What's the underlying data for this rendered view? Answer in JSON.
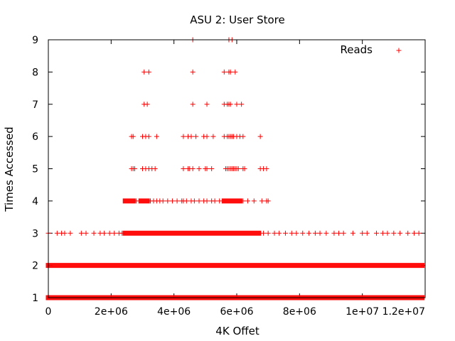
{
  "chart_data": {
    "type": "scatter",
    "title": "ASU 2: User Store",
    "xlabel": "4K Offet",
    "ylabel": "Times Accessed",
    "xlim": [
      0,
      12000000
    ],
    "ylim": [
      1,
      9
    ],
    "x_ticks": [
      {
        "value": 0,
        "label": "0"
      },
      {
        "value": 2000000,
        "label": "2e+06"
      },
      {
        "value": 4000000,
        "label": "4e+06"
      },
      {
        "value": 6000000,
        "label": "6e+06"
      },
      {
        "value": 8000000,
        "label": "8e+06"
      },
      {
        "value": 10000000,
        "label": "1e+07"
      },
      {
        "value": 12000000,
        "label": "1.2e+07"
      }
    ],
    "y_ticks": [
      {
        "value": 1,
        "label": "1"
      },
      {
        "value": 2,
        "label": "2"
      },
      {
        "value": 3,
        "label": "3"
      },
      {
        "value": 4,
        "label": "4"
      },
      {
        "value": 5,
        "label": "5"
      },
      {
        "value": 6,
        "label": "6"
      },
      {
        "value": 7,
        "label": "7"
      },
      {
        "value": 8,
        "label": "8"
      },
      {
        "value": 9,
        "label": "9"
      }
    ],
    "grid": false,
    "legend_position": "top-right",
    "series": [
      {
        "name": "Reads",
        "color": "#ff0000",
        "marker": "plus",
        "points": [
          {
            "y": 1,
            "x_segments": [
              [
                0,
                11900000
              ]
            ]
          },
          {
            "y": 2,
            "x_segments": [
              [
                0,
                11900000
              ]
            ]
          },
          {
            "y": 3,
            "x_segments": [
              [
                2450000,
                6700000
              ]
            ],
            "x": [
              0,
              280000,
              420000,
              520000,
              700000,
              1050000,
              1200000,
              1450000,
              1650000,
              1780000,
              1950000,
              2100000,
              2250000,
              2350000,
              6850000,
              7000000,
              7200000,
              7350000,
              7550000,
              7750000,
              7900000,
              8100000,
              8300000,
              8500000,
              8650000,
              8850000,
              9100000,
              9250000,
              9400000,
              9700000,
              10000000,
              10150000,
              10450000,
              10650000,
              10800000,
              11000000,
              11200000,
              11450000,
              11650000,
              11800000
            ]
          },
          {
            "y": 4,
            "x_segments": [
              [
                2450000,
                2700000
              ],
              [
                2950000,
                3150000
              ],
              [
                5600000,
                6100000
              ]
            ],
            "x": [
              2800000,
              3250000,
              3350000,
              3450000,
              3550000,
              3650000,
              3800000,
              3950000,
              4100000,
              4250000,
              4300000,
              4400000,
              4550000,
              4650000,
              4800000,
              4950000,
              5050000,
              5200000,
              5300000,
              5450000,
              6200000,
              6350000,
              6550000,
              6800000,
              6950000,
              7000000
            ]
          },
          {
            "y": 5,
            "x": [
              2650000,
              2700000,
              2750000,
              3000000,
              3100000,
              3200000,
              3300000,
              3400000,
              4300000,
              4450000,
              4500000,
              4600000,
              4800000,
              5000000,
              5050000,
              5200000,
              5650000,
              5700000,
              5750000,
              5800000,
              5850000,
              5900000,
              5950000,
              6000000,
              6050000,
              6200000,
              6250000,
              6750000,
              6850000,
              6950000
            ]
          },
          {
            "y": 6,
            "x": [
              2650000,
              2700000,
              3000000,
              3100000,
              3200000,
              3450000,
              4300000,
              4450000,
              4550000,
              4700000,
              4950000,
              5050000,
              5250000,
              5600000,
              5700000,
              5750000,
              5800000,
              5850000,
              5900000,
              6000000,
              6100000,
              6200000,
              6750000
            ]
          },
          {
            "y": 7,
            "x": [
              3050000,
              3150000,
              4600000,
              5050000,
              5600000,
              5700000,
              5750000,
              5800000,
              6000000,
              6150000
            ]
          },
          {
            "y": 8,
            "x": [
              3050000,
              3200000,
              4600000,
              5600000,
              5750000,
              5800000,
              5950000
            ]
          },
          {
            "y": 9,
            "x": [
              4600000,
              5750000,
              5850000
            ]
          }
        ]
      }
    ]
  }
}
